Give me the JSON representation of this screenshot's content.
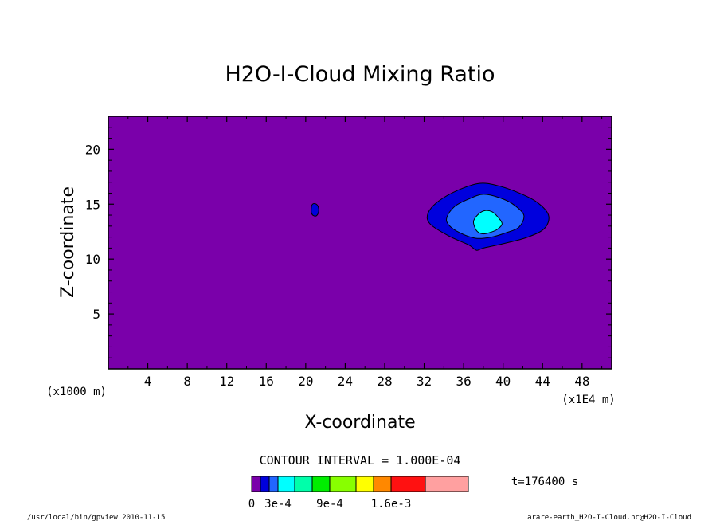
{
  "chart_data": {
    "type": "contour",
    "title": "H2O-I-Cloud Mixing Ratio",
    "xlabel": "X-coordinate",
    "ylabel": "Z-coordinate",
    "x_unit": "(x1E4 m)",
    "y_unit": "(x1000 m)",
    "xlim": [
      0,
      51
    ],
    "ylim": [
      0,
      23
    ],
    "x_ticks": [
      4,
      8,
      12,
      16,
      20,
      24,
      28,
      32,
      36,
      40,
      44,
      48
    ],
    "y_ticks": [
      5,
      10,
      15,
      20
    ],
    "contour_interval": "CONTOUR INTERVAL = 1.000E-04",
    "time_label": "t=176400 s",
    "colorbar": {
      "colors": [
        "#7a00aa",
        "#0000dd",
        "#2266ff",
        "#00ffff",
        "#00ffaa",
        "#00ee00",
        "#88ff00",
        "#ffff00",
        "#ff8800",
        "#ff1111",
        "#ffa0a0"
      ],
      "labels": [
        "0",
        "3e-4",
        "9e-4",
        "1.6e-3"
      ]
    },
    "background_color": "#7a00aa",
    "features": [
      {
        "name": "main-cloud",
        "levels": [
          {
            "color": "#0000dd",
            "outline": [
              [
                32.4,
                14.2
              ],
              [
                33.5,
                15.3
              ],
              [
                35.5,
                16.3
              ],
              [
                37.6,
                16.9
              ],
              [
                39.4,
                16.7
              ],
              [
                41.4,
                16.1
              ],
              [
                43.4,
                15.2
              ],
              [
                44.6,
                14.0
              ],
              [
                44.2,
                12.8
              ],
              [
                42.5,
                12.0
              ],
              [
                40.0,
                11.4
              ],
              [
                38.0,
                11.0
              ],
              [
                37.3,
                10.8
              ],
              [
                36.5,
                11.3
              ],
              [
                34.5,
                12.1
              ],
              [
                32.6,
                13.2
              ]
            ]
          },
          {
            "color": "#2266ff",
            "outline": [
              [
                34.3,
                13.8
              ],
              [
                35.1,
                14.8
              ],
              [
                36.6,
                15.5
              ],
              [
                38.0,
                15.9
              ],
              [
                39.6,
                15.6
              ],
              [
                41.0,
                15.0
              ],
              [
                42.1,
                14.0
              ],
              [
                41.6,
                12.9
              ],
              [
                40.3,
                12.4
              ],
              [
                38.8,
                12.0
              ],
              [
                37.2,
                11.9
              ],
              [
                35.6,
                12.4
              ],
              [
                34.5,
                13.1
              ]
            ]
          },
          {
            "color": "#00ffff",
            "outline": [
              [
                37.0,
                13.4
              ],
              [
                37.4,
                14.0
              ],
              [
                38.1,
                14.4
              ],
              [
                38.9,
                14.3
              ],
              [
                39.5,
                13.8
              ],
              [
                39.9,
                13.2
              ],
              [
                39.4,
                12.7
              ],
              [
                38.6,
                12.4
              ],
              [
                37.9,
                12.3
              ],
              [
                37.3,
                12.6
              ]
            ]
          }
        ]
      },
      {
        "name": "small-cloud",
        "levels": [
          {
            "color": "#0000dd",
            "outline": [
              [
                20.55,
                14.5
              ],
              [
                20.65,
                14.95
              ],
              [
                20.95,
                15.05
              ],
              [
                21.25,
                14.8
              ],
              [
                21.3,
                14.3
              ],
              [
                21.1,
                13.95
              ],
              [
                20.8,
                13.95
              ],
              [
                20.6,
                14.15
              ]
            ]
          }
        ]
      }
    ],
    "footer_left": "/usr/local/bin/gpview 2010-11-15",
    "footer_right": "arare-earth_H2O-I-Cloud.nc@H2O-I-Cloud"
  }
}
